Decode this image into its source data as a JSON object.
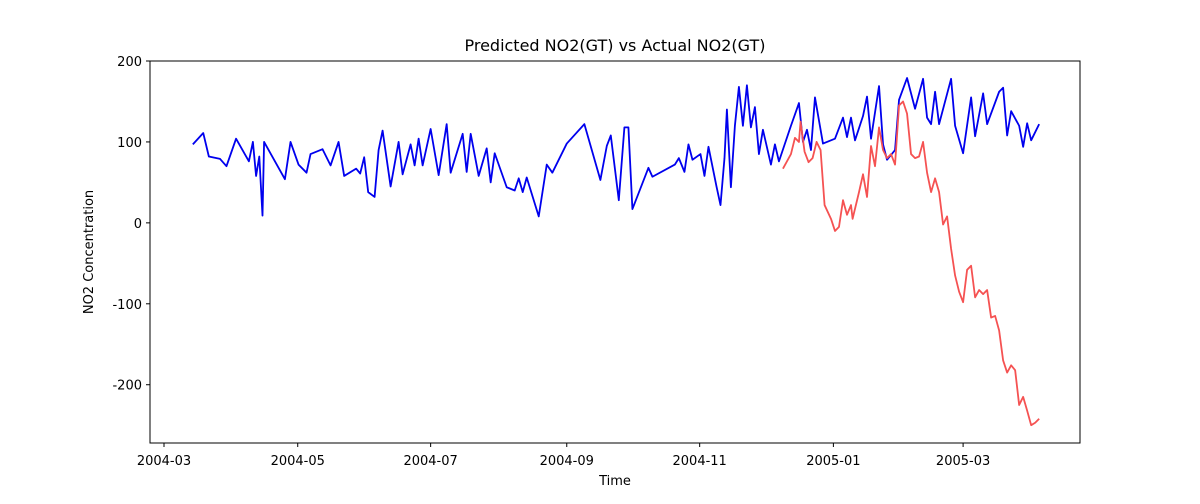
{
  "chart_data": {
    "type": "line",
    "title": "Predicted NO2(GT) vs Actual NO2(GT)",
    "xlabel": "Time",
    "ylabel": "NO2 Concentration",
    "xlim": [
      2004.1465,
      2005.308
    ],
    "ylim": [
      -272,
      200
    ],
    "xticks": [
      {
        "value": 2004.164,
        "label": "2004-03"
      },
      {
        "value": 2004.331,
        "label": "2004-05"
      },
      {
        "value": 2004.497,
        "label": "2004-07"
      },
      {
        "value": 2004.667,
        "label": "2004-09"
      },
      {
        "value": 2004.833,
        "label": "2004-11"
      },
      {
        "value": 2005.0,
        "label": "2005-01"
      },
      {
        "value": 2005.162,
        "label": "2005-03"
      }
    ],
    "yticks": [
      -200,
      -100,
      0,
      100,
      200
    ],
    "grid": false,
    "series": [
      {
        "color": "#0000ee",
        "x": [
          2004.2,
          2004.213,
          2004.22,
          2004.234,
          2004.242,
          2004.254,
          2004.27,
          2004.275,
          2004.279,
          2004.283,
          2004.287,
          2004.289,
          2004.315,
          2004.322,
          2004.332,
          2004.342,
          2004.347,
          2004.362,
          2004.372,
          2004.382,
          2004.389,
          2004.404,
          2004.409,
          2004.414,
          2004.419,
          2004.427,
          2004.432,
          2004.437,
          2004.447,
          2004.457,
          2004.462,
          2004.472,
          2004.477,
          2004.482,
          2004.487,
          2004.497,
          2004.507,
          2004.517,
          2004.522,
          2004.537,
          2004.542,
          2004.547,
          2004.557,
          2004.567,
          2004.572,
          2004.577,
          2004.592,
          2004.602,
          2004.607,
          2004.612,
          2004.617,
          2004.632,
          2004.642,
          2004.649,
          2004.667,
          2004.689,
          2004.709,
          2004.717,
          2004.722,
          2004.732,
          2004.739,
          2004.744,
          2004.749,
          2004.769,
          2004.774,
          2004.802,
          2004.807,
          2004.814,
          2004.819,
          2004.824,
          2004.834,
          2004.839,
          2004.844,
          2004.854,
          2004.859,
          2004.864,
          2004.867,
          2004.872,
          2004.877,
          2004.882,
          2004.887,
          2004.892,
          2004.897,
          2004.902,
          2004.907,
          2004.912,
          2004.922,
          2004.927,
          2004.932,
          2004.947,
          2004.957,
          2004.962,
          2004.967,
          2004.972,
          2004.977,
          2004.987,
          2005.002,
          2005.012,
          2005.017,
          2005.022,
          2005.027,
          2005.037,
          2005.042,
          2005.047,
          2005.057,
          2005.062,
          2005.067,
          2005.077,
          2005.082,
          2005.092,
          2005.102,
          2005.112,
          2005.117,
          2005.122,
          2005.127,
          2005.132,
          2005.147,
          2005.152,
          2005.162,
          2005.172,
          2005.177,
          2005.187,
          2005.192,
          2005.207,
          2005.212,
          2005.217,
          2005.222,
          2005.232,
          2005.237,
          2005.242,
          2005.247,
          2005.257
        ],
        "values": [
          97,
          111,
          82,
          79,
          70,
          104,
          76,
          100,
          58,
          82,
          9,
          100,
          54,
          100,
          72,
          62,
          85,
          91,
          71,
          100,
          58,
          67,
          61,
          81,
          38,
          32,
          90,
          114,
          45,
          100,
          60,
          97,
          71,
          104,
          71,
          116,
          59,
          122,
          62,
          110,
          63,
          110,
          58,
          92,
          50,
          86,
          44,
          40,
          55,
          38,
          56,
          8,
          72,
          62,
          98,
          122,
          53,
          95,
          108,
          28,
          118,
          118,
          17,
          68,
          57,
          72,
          80,
          63,
          97,
          78,
          85,
          58,
          94,
          45,
          22,
          80,
          140,
          44,
          120,
          168,
          120,
          170,
          118,
          143,
          85,
          115,
          72,
          97,
          76,
          120,
          148,
          100,
          115,
          90,
          155,
          98,
          104,
          130,
          106,
          130,
          102,
          132,
          156,
          104,
          169,
          97,
          78,
          90,
          152,
          179,
          141,
          178,
          130,
          122,
          162,
          122,
          178,
          120,
          86,
          155,
          107,
          160,
          122,
          162,
          167,
          108,
          138,
          120,
          94,
          123,
          102,
          122
        ]
      },
      {
        "color": "#f55252",
        "x": [
          2004.937,
          2004.947,
          2004.952,
          2004.957,
          2004.959,
          2004.964,
          2004.969,
          2004.974,
          2004.979,
          2004.984,
          2004.989,
          2004.997,
          2005.002,
          2005.007,
          2005.012,
          2005.017,
          2005.022,
          2005.024,
          2005.032,
          2005.037,
          2005.042,
          2005.047,
          2005.052,
          2005.057,
          2005.062,
          2005.067,
          2005.072,
          2005.077,
          2005.082,
          2005.087,
          2005.092,
          2005.097,
          2005.102,
          2005.107,
          2005.112,
          2005.117,
          2005.122,
          2005.127,
          2005.132,
          2005.137,
          2005.142,
          2005.147,
          2005.152,
          2005.157,
          2005.162,
          2005.167,
          2005.172,
          2005.177,
          2005.182,
          2005.187,
          2005.192,
          2005.197,
          2005.202,
          2005.207,
          2005.212,
          2005.217,
          2005.222,
          2005.227,
          2005.232,
          2005.237,
          2005.242,
          2005.247,
          2005.252,
          2005.257
        ],
        "values": [
          67,
          85,
          105,
          100,
          125,
          88,
          75,
          80,
          100,
          90,
          22,
          5,
          -10,
          -5,
          28,
          10,
          22,
          5,
          38,
          60,
          32,
          95,
          70,
          118,
          90,
          80,
          85,
          72,
          145,
          150,
          135,
          85,
          80,
          82,
          100,
          62,
          38,
          55,
          38,
          -2,
          8,
          -32,
          -65,
          -85,
          -98,
          -58,
          -53,
          -92,
          -83,
          -88,
          -83,
          -117,
          -115,
          -133,
          -170,
          -185,
          -176,
          -182,
          -225,
          -215,
          -232,
          -250,
          -247,
          -242
        ]
      }
    ]
  }
}
